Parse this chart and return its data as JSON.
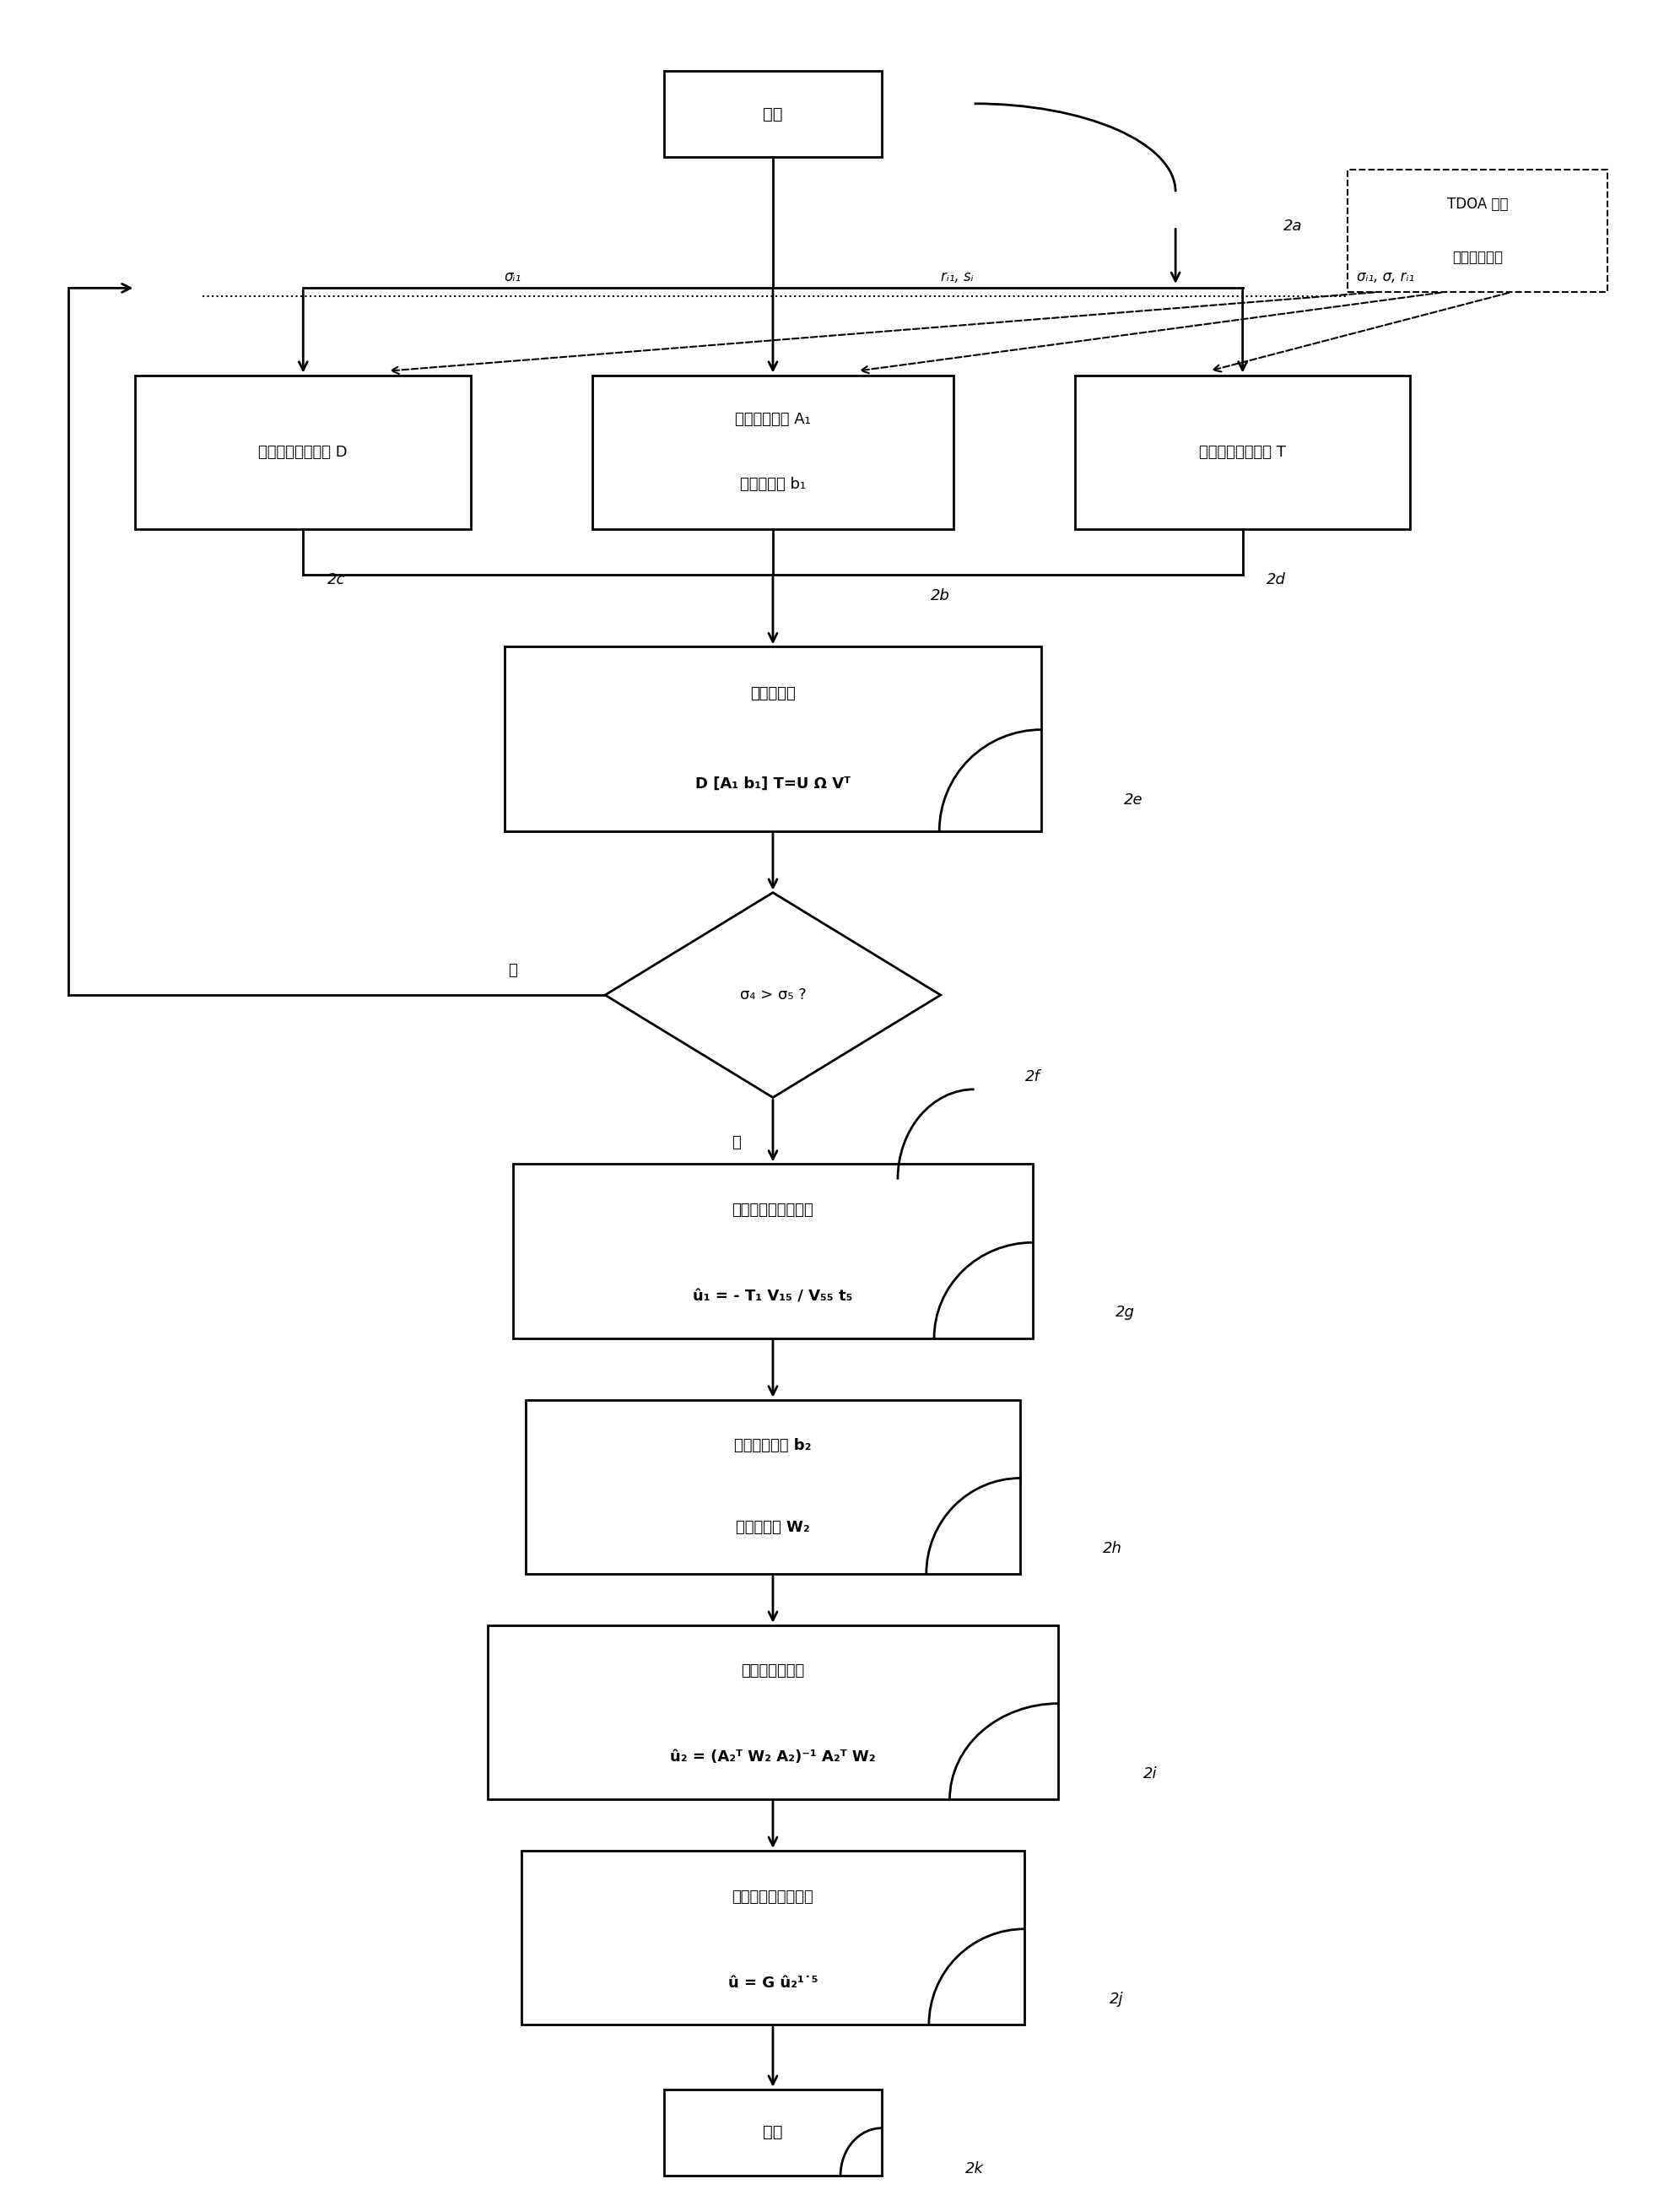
{
  "bg": "#ffffff",
  "start_label": "开始",
  "end_label": "结束",
  "box_left_label": "计算左乘加权矩阵 D",
  "box_mid_label1": "构造系数矩阵 A₁",
  "box_mid_label2": "及观测向量 b₁",
  "box_right_label": "计算右乘加权矩阵 T",
  "svd_label1": "特征值分解",
  "svd_label2": "D [A₁ b₁] T=U Ω Vᵀ",
  "dec_label": "σ₄ > σ₅ ?",
  "dec_yes": "是",
  "dec_no": "否",
  "init_label1": "辐射源位置初始估计",
  "init_label2": "û₁ = - T₁ V₁₅ / V₅₅ t₅",
  "obs_label1": "计算观测向量 b₂",
  "obs_label2": "及加权矩阵 W₂",
  "est2_label1": "辐射源位置估计",
  "est2_label2": "û₂ = (A₂ᵀ W₂ A₂)⁻¹ A₂ᵀ W₂",
  "out_label1": "辐射源估计位置输出",
  "out_label2": "û = G û₂¹˙⁵",
  "tdoa_line1": "TDOA 估计",
  "tdoa_line2": "阵元位置测量",
  "sig_i1": "σᵢ₁",
  "ri1_si": "rᵢ₁, sᵢ",
  "sig_all": "σᵢ₁, σ, rᵢ₁",
  "steps": [
    "2a",
    "2b",
    "2c",
    "2d",
    "2e",
    "2f",
    "2g",
    "2h",
    "2i",
    "2j",
    "2k"
  ]
}
